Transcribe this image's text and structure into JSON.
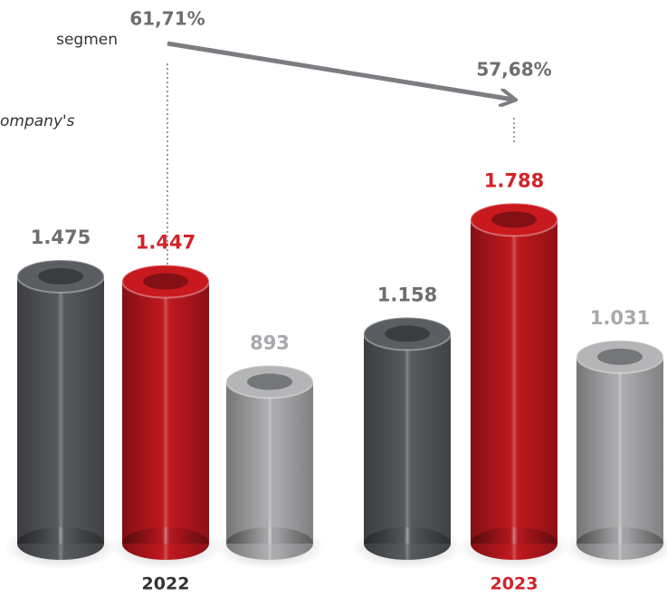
{
  "chart_data": {
    "type": "bar",
    "categories": [
      "2022",
      "2023"
    ],
    "category_colors": [
      "#333333",
      "#d2232a"
    ],
    "series": [
      {
        "color": "#5a5d62",
        "values": [
          1475,
          1158
        ],
        "value_labels": [
          "1.475",
          "1.158"
        ],
        "label_color": "#6d6e71"
      },
      {
        "color": "#c8191f",
        "values": [
          1447,
          1788
        ],
        "value_labels": [
          "1.447",
          "1.788"
        ],
        "label_color": "#d2232a"
      },
      {
        "color": "#b4b5b7",
        "values": [
          893,
          1031
        ],
        "value_labels": [
          "893",
          "1.031"
        ],
        "label_color": "#a7a9ac"
      }
    ],
    "annotations": [
      "61,71%",
      "57,68%"
    ],
    "side_texts": [
      "segmen",
      "ompany's"
    ]
  }
}
